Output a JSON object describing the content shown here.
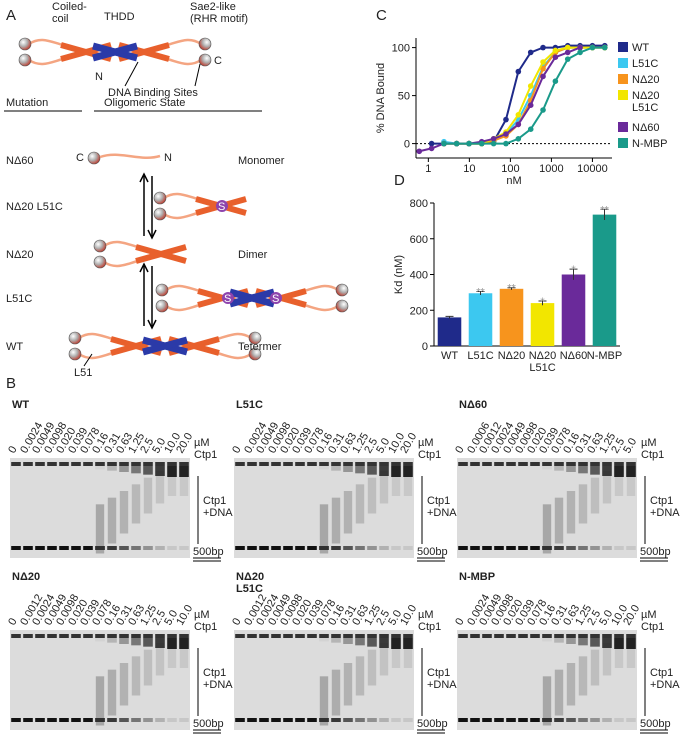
{
  "panel_a": {
    "label": "A",
    "coiled_coil": "Coiled-\ncoil",
    "thdd": "THDD",
    "sae2": "Sae2-like\n(RHR motif)",
    "n_term": "N",
    "c_term": "C",
    "binding_sites": "DNA Binding Sites",
    "header_mutation": "Mutation",
    "header_state": "Oligomeric State",
    "rows": [
      {
        "mutation": "NΔ60",
        "state": "Monomer"
      },
      {
        "mutation": "NΔ20 L51C"
      },
      {
        "mutation": "NΔ20",
        "state": "Dimer"
      },
      {
        "mutation": "L51C"
      },
      {
        "mutation": "WT",
        "state": "Tetermer"
      }
    ],
    "monomer_c": "C",
    "monomer_n": "N",
    "disulfide": "S",
    "l51": "L51"
  },
  "chart_data": [
    {
      "panel": "C",
      "type": "line",
      "x_label": "nM",
      "y_label": "% DNA Bound",
      "log_x": true,
      "xlim": [
        0.5,
        30000
      ],
      "xticks": [
        1,
        10,
        100,
        1000,
        10000
      ],
      "ylim": [
        -15,
        110
      ],
      "yticks": [
        0,
        50,
        100
      ],
      "hline": 0,
      "legend": "right",
      "series": [
        {
          "name": "WT",
          "color": "#1f2a8a",
          "x": [
            1.2,
            2.4,
            4.9,
            9.8,
            20,
            39,
            78,
            156,
            313,
            625,
            1250,
            2500,
            5000,
            10000,
            20000
          ],
          "values": [
            0,
            0,
            0,
            0,
            0,
            2,
            25,
            75,
            95,
            100,
            100,
            102,
            102,
            102,
            102
          ]
        },
        {
          "name": "L51C",
          "color": "#3cc8f0",
          "x": [
            2.4,
            4.9,
            9.8,
            20,
            39,
            78,
            156,
            313,
            625,
            1250,
            2500,
            5000,
            10000,
            20000
          ],
          "values": [
            2,
            0,
            0,
            0,
            5,
            10,
            25,
            50,
            80,
            95,
            100,
            100,
            100,
            100
          ]
        },
        {
          "name": "NΔ20",
          "color": "#f7941d",
          "x": [
            2.4,
            4.9,
            9.8,
            20,
            39,
            78,
            156,
            313,
            625,
            1250,
            2500,
            5000,
            10000,
            20000
          ],
          "values": [
            0,
            0,
            0,
            0,
            3,
            8,
            20,
            45,
            78,
            95,
            100,
            100,
            100,
            100
          ]
        },
        {
          "name": "NΔ20\nL51C",
          "color": "#f2e600",
          "x": [
            2.4,
            4.9,
            9.8,
            20,
            39,
            78,
            156,
            313,
            625,
            1250,
            2500,
            5000,
            10000,
            20000
          ],
          "values": [
            0,
            0,
            0,
            0,
            5,
            12,
            30,
            60,
            85,
            97,
            100,
            100,
            100,
            100
          ]
        },
        {
          "name": "NΔ60",
          "color": "#6a2a9a",
          "x": [
            0.6,
            1.2,
            2.4,
            4.9,
            9.8,
            20,
            39,
            78,
            156,
            313,
            625,
            1250,
            2500,
            5000
          ],
          "values": [
            -8,
            -5,
            0,
            0,
            0,
            2,
            5,
            10,
            20,
            40,
            70,
            90,
            95,
            100
          ]
        },
        {
          "name": "N-MBP",
          "color": "#1a9a8a",
          "x": [
            2.4,
            4.9,
            9.8,
            20,
            39,
            78,
            156,
            313,
            625,
            1250,
            2500,
            5000,
            10000,
            20000
          ],
          "values": [
            0,
            0,
            0,
            0,
            0,
            0,
            5,
            15,
            35,
            65,
            88,
            95,
            100,
            100
          ]
        }
      ]
    },
    {
      "panel": "D",
      "type": "bar",
      "y_label": "Kd (nM)",
      "categories": [
        "WT",
        "L51C",
        "NΔ20",
        "NΔ20\nL51C",
        "NΔ60",
        "N-MBP"
      ],
      "values": [
        160,
        295,
        320,
        240,
        400,
        735
      ],
      "errors": [
        6,
        10,
        6,
        12,
        30,
        30
      ],
      "colors": [
        "#1f2a8a",
        "#3cc8f0",
        "#f7941d",
        "#f2e600",
        "#6a2a9a",
        "#1a9a8a"
      ],
      "annotations": [
        null,
        "**",
        "**",
        "*",
        "*",
        "**"
      ],
      "ylim": [
        0,
        800
      ],
      "yticks": [
        0,
        200,
        400,
        600,
        800
      ]
    }
  ],
  "panel_b": {
    "label": "B",
    "gels": [
      {
        "title": "WT",
        "unit": "µM",
        "protein": "Ctp1",
        "complex": "Ctp1\n+DNA",
        "marker": "500bp",
        "lanes": [
          "0",
          "0.0024",
          "0.0049",
          "0.0098",
          "0.020",
          "0.039",
          "0.078",
          "0.16",
          "0.31",
          "0.63",
          "1.25",
          "2.5",
          "5.0",
          "10.0",
          "20.0"
        ]
      },
      {
        "title": "L51C",
        "unit": "µM",
        "protein": "Ctp1",
        "complex": "Ctp1\n+DNA",
        "marker": "500bp",
        "lanes": [
          "0",
          "0.0024",
          "0.0049",
          "0.0098",
          "0.020",
          "0.039",
          "0.078",
          "0.16",
          "0.31",
          "0.63",
          "1.25",
          "2.5",
          "5.0",
          "10.0",
          "20.0"
        ]
      },
      {
        "title": "NΔ60",
        "unit": "µM",
        "protein": "Ctp1",
        "complex": "Ctp1\n+DNA",
        "marker": "500bp",
        "lanes": [
          "0",
          "0.0006",
          "0.0012",
          "0.0024",
          "0.0049",
          "0.0098",
          "0.020",
          "0.039",
          "0.078",
          "0.16",
          "0.31",
          "0.63",
          "1.25",
          "2.5",
          "5.0"
        ]
      },
      {
        "title": "NΔ20",
        "unit": "µM",
        "protein": "Ctp1",
        "complex": "Ctp1\n+DNA",
        "marker": "500bp",
        "lanes": [
          "0",
          "0.0012",
          "0.0024",
          "0.0049",
          "0.0098",
          "0.020",
          "0.039",
          "0.078",
          "0.16",
          "0.31",
          "0.63",
          "1.25",
          "2.5",
          "5.0",
          "10.0"
        ]
      },
      {
        "title": "NΔ20\nL51C",
        "unit": "µM",
        "protein": "Ctp1",
        "complex": "Ctp1\n+DNA",
        "marker": "500bp",
        "lanes": [
          "0",
          "0.0012",
          "0.0024",
          "0.0049",
          "0.0098",
          "0.020",
          "0.039",
          "0.078",
          "0.16",
          "0.31",
          "0.63",
          "1.25",
          "2.5",
          "5.0",
          "10.0"
        ]
      },
      {
        "title": "N-MBP",
        "unit": "µM",
        "protein": "Ctp1",
        "complex": "Ctp1\n+DNA",
        "marker": "500bp",
        "lanes": [
          "0",
          "0.0024",
          "0.0049",
          "0.0098",
          "0.020",
          "0.039",
          "0.078",
          "0.16",
          "0.31",
          "0.63",
          "1.25",
          "2.5",
          "5.0",
          "10.0",
          "20.0"
        ]
      }
    ]
  }
}
